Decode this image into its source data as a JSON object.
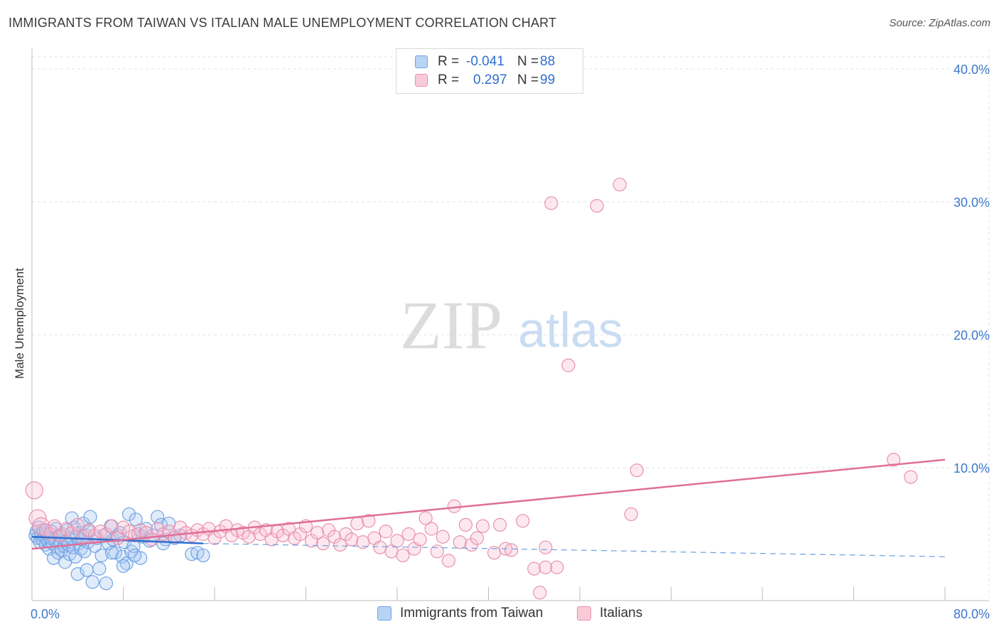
{
  "title": "IMMIGRANTS FROM TAIWAN VS ITALIAN MALE UNEMPLOYMENT CORRELATION CHART",
  "source": "Source: ZipAtlas.com",
  "watermark": {
    "zip": "ZIP",
    "atlas": "atlas"
  },
  "legend_top": {
    "r_label": "R =",
    "n_label": "N =",
    "rows": [
      {
        "r": "-0.041",
        "n": "88",
        "color": "#6fa3e4"
      },
      {
        "r": "0.297",
        "n": "99",
        "color": "#e892ad"
      }
    ]
  },
  "legend_bottom": [
    "Immigrants from Taiwan",
    "Italians"
  ],
  "chart_data": {
    "type": "scatter",
    "title": "IMMIGRANTS FROM TAIWAN VS ITALIAN MALE UNEMPLOYMENT CORRELATION CHART",
    "xlabel": "",
    "ylabel": "Male Unemployment",
    "xlim": [
      0,
      80
    ],
    "ylim": [
      0,
      40
    ],
    "x_tick_labels": [
      "0.0%",
      "80.0%"
    ],
    "y_ticks": [
      10,
      20,
      30,
      40
    ],
    "y_tick_labels": [
      "10.0%",
      "20.0%",
      "30.0%",
      "40.0%"
    ],
    "grid": true,
    "series": [
      {
        "name": "Immigrants from Taiwan",
        "color": "#6fa3e4",
        "trend": {
          "x": [
            0,
            15
          ],
          "y": [
            4.8,
            4.3
          ],
          "dashed_extension_to": [
            80,
            3.3
          ]
        },
        "points": [
          [
            0.3,
            4.9
          ],
          [
            0.4,
            5.2
          ],
          [
            0.5,
            4.7
          ],
          [
            0.6,
            5.5
          ],
          [
            0.7,
            4.4
          ],
          [
            0.8,
            5.0
          ],
          [
            0.9,
            4.6
          ],
          [
            1.0,
            5.3
          ],
          [
            1.1,
            4.8
          ],
          [
            1.2,
            4.2
          ],
          [
            1.3,
            5.1
          ],
          [
            1.4,
            4.5
          ],
          [
            1.5,
            3.9
          ],
          [
            1.6,
            4.7
          ],
          [
            1.7,
            5.2
          ],
          [
            1.8,
            4.3
          ],
          [
            1.9,
            3.2
          ],
          [
            2.0,
            4.6
          ],
          [
            2.1,
            5.4
          ],
          [
            2.2,
            4.0
          ],
          [
            2.3,
            3.6
          ],
          [
            2.4,
            4.9
          ],
          [
            2.5,
            4.4
          ],
          [
            2.6,
            3.8
          ],
          [
            2.7,
            5.0
          ],
          [
            2.8,
            4.1
          ],
          [
            2.9,
            2.9
          ],
          [
            3.0,
            4.5
          ],
          [
            3.1,
            5.3
          ],
          [
            3.2,
            4.2
          ],
          [
            3.3,
            3.5
          ],
          [
            3.4,
            4.7
          ],
          [
            3.5,
            6.2
          ],
          [
            3.6,
            4.0
          ],
          [
            3.7,
            5.5
          ],
          [
            3.8,
            3.3
          ],
          [
            3.9,
            4.8
          ],
          [
            4.0,
            2.0
          ],
          [
            4.1,
            4.3
          ],
          [
            4.2,
            5.1
          ],
          [
            4.3,
            3.9
          ],
          [
            4.4,
            4.6
          ],
          [
            4.5,
            5.8
          ],
          [
            4.6,
            3.7
          ],
          [
            4.7,
            4.9
          ],
          [
            4.8,
            2.3
          ],
          [
            4.9,
            4.4
          ],
          [
            5.0,
            5.2
          ],
          [
            5.1,
            6.3
          ],
          [
            5.3,
            1.4
          ],
          [
            5.5,
            4.1
          ],
          [
            5.7,
            4.7
          ],
          [
            5.9,
            2.4
          ],
          [
            6.1,
            3.4
          ],
          [
            6.3,
            4.9
          ],
          [
            6.5,
            1.3
          ],
          [
            6.7,
            4.3
          ],
          [
            6.9,
            5.6
          ],
          [
            7.1,
            4.6
          ],
          [
            7.3,
            3.6
          ],
          [
            7.5,
            4.9
          ],
          [
            7.7,
            5.1
          ],
          [
            7.9,
            3.3
          ],
          [
            8.1,
            4.4
          ],
          [
            8.3,
            2.8
          ],
          [
            8.5,
            6.5
          ],
          [
            8.7,
            3.7
          ],
          [
            8.9,
            4.1
          ],
          [
            9.1,
            6.1
          ],
          [
            9.3,
            5.0
          ],
          [
            9.5,
            3.2
          ],
          [
            9.7,
            4.8
          ],
          [
            10.0,
            5.4
          ],
          [
            10.3,
            4.5
          ],
          [
            10.6,
            4.9
          ],
          [
            11.0,
            6.3
          ],
          [
            11.3,
            5.7
          ],
          [
            11.7,
            4.6
          ],
          [
            12.0,
            5.8
          ],
          [
            12.5,
            4.7
          ],
          [
            7.0,
            3.6
          ],
          [
            8.0,
            2.6
          ],
          [
            9.0,
            3.4
          ],
          [
            11.5,
            4.3
          ],
          [
            13.0,
            4.9
          ],
          [
            14.0,
            3.5
          ],
          [
            14.5,
            3.6
          ],
          [
            15.0,
            3.4
          ]
        ]
      },
      {
        "name": "Italians",
        "color": "#e892ad",
        "trend": {
          "x": [
            0,
            80
          ],
          "y": [
            3.9,
            10.6
          ]
        },
        "points": [
          [
            0.2,
            8.3
          ],
          [
            0.5,
            6.2
          ],
          [
            0.8,
            5.6
          ],
          [
            1.2,
            5.3
          ],
          [
            1.6,
            5.0
          ],
          [
            2.0,
            5.6
          ],
          [
            2.5,
            4.9
          ],
          [
            3.0,
            5.4
          ],
          [
            3.5,
            5.1
          ],
          [
            4.0,
            5.7
          ],
          [
            4.5,
            4.8
          ],
          [
            5.0,
            5.3
          ],
          [
            5.5,
            4.9
          ],
          [
            6.0,
            5.2
          ],
          [
            6.5,
            5.0
          ],
          [
            7.0,
            5.6
          ],
          [
            7.5,
            4.7
          ],
          [
            8.0,
            5.5
          ],
          [
            8.5,
            5.2
          ],
          [
            9.0,
            4.9
          ],
          [
            9.5,
            5.3
          ],
          [
            10.0,
            5.1
          ],
          [
            10.5,
            4.6
          ],
          [
            11.0,
            5.4
          ],
          [
            11.5,
            5.0
          ],
          [
            12.0,
            5.2
          ],
          [
            12.5,
            4.8
          ],
          [
            13.0,
            5.5
          ],
          [
            13.5,
            5.1
          ],
          [
            14.0,
            4.9
          ],
          [
            14.5,
            5.3
          ],
          [
            15.0,
            5.0
          ],
          [
            15.5,
            5.4
          ],
          [
            16.0,
            4.7
          ],
          [
            16.5,
            5.2
          ],
          [
            17.0,
            5.6
          ],
          [
            17.5,
            4.9
          ],
          [
            18.0,
            5.3
          ],
          [
            18.5,
            5.1
          ],
          [
            19.0,
            4.8
          ],
          [
            19.5,
            5.5
          ],
          [
            20.0,
            5.0
          ],
          [
            20.5,
            5.3
          ],
          [
            21.0,
            4.6
          ],
          [
            21.5,
            5.2
          ],
          [
            22.0,
            4.9
          ],
          [
            22.5,
            5.4
          ],
          [
            23.0,
            4.7
          ],
          [
            23.5,
            5.0
          ],
          [
            24.0,
            5.6
          ],
          [
            24.5,
            4.5
          ],
          [
            25.0,
            5.1
          ],
          [
            25.5,
            4.3
          ],
          [
            26.0,
            5.3
          ],
          [
            26.5,
            4.8
          ],
          [
            27.0,
            4.2
          ],
          [
            27.5,
            5.0
          ],
          [
            28.0,
            4.6
          ],
          [
            28.5,
            5.8
          ],
          [
            29.0,
            4.4
          ],
          [
            29.5,
            6.0
          ],
          [
            30.0,
            4.7
          ],
          [
            30.5,
            4.0
          ],
          [
            31.0,
            5.2
          ],
          [
            31.5,
            3.7
          ],
          [
            32.0,
            4.5
          ],
          [
            32.5,
            3.4
          ],
          [
            33.0,
            5.0
          ],
          [
            33.5,
            3.9
          ],
          [
            34.0,
            4.6
          ],
          [
            34.5,
            6.2
          ],
          [
            35.0,
            5.4
          ],
          [
            35.5,
            3.7
          ],
          [
            36.0,
            4.8
          ],
          [
            36.5,
            3.0
          ],
          [
            37.0,
            7.1
          ],
          [
            37.5,
            4.4
          ],
          [
            38.0,
            5.7
          ],
          [
            38.5,
            4.2
          ],
          [
            39.0,
            4.7
          ],
          [
            39.5,
            5.6
          ],
          [
            40.5,
            3.6
          ],
          [
            41.0,
            5.7
          ],
          [
            41.5,
            3.9
          ],
          [
            42.0,
            3.8
          ],
          [
            43.0,
            6.0
          ],
          [
            44.0,
            2.4
          ],
          [
            44.5,
            0.6
          ],
          [
            45.0,
            2.5
          ],
          [
            46.0,
            2.5
          ],
          [
            47.0,
            17.7
          ],
          [
            45.5,
            29.9
          ],
          [
            49.5,
            29.7
          ],
          [
            51.5,
            31.3
          ],
          [
            52.5,
            6.5
          ],
          [
            53.0,
            9.8
          ],
          [
            75.5,
            10.6
          ],
          [
            77.0,
            9.3
          ],
          [
            45.0,
            4.0
          ]
        ]
      }
    ]
  }
}
